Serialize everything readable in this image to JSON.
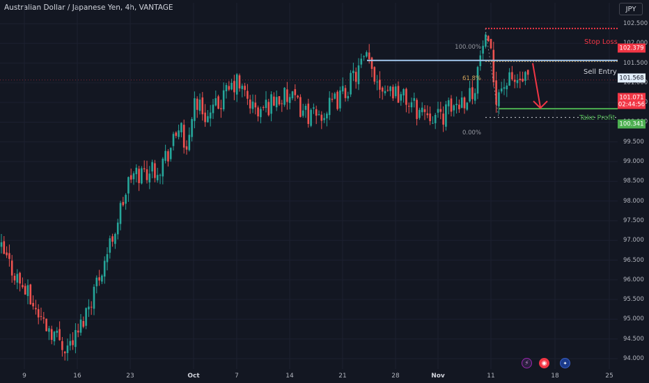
{
  "header": {
    "title": "Australian Dollar / Japanese Yen, 4h, VANTAGE",
    "currency_button": "JPY"
  },
  "colors": {
    "background": "#131722",
    "bull": "#26a69a",
    "bear": "#ef5350",
    "stop_loss": "#f23645",
    "sell_entry": "#a3c8ee",
    "take_profit": "#4caf50",
    "arrow": "#f23645",
    "fib_label": "#d1a55a"
  },
  "axis": {
    "y_ticks": [
      "102.500",
      "102.000",
      "101.500",
      "101.000",
      "100.500",
      "100.000",
      "99.500",
      "99.000",
      "98.500",
      "98.000",
      "97.500",
      "97.000",
      "96.500",
      "96.000",
      "95.500",
      "95.000",
      "94.500",
      "94.000"
    ],
    "x_ticks": [
      "9",
      "16",
      "23",
      "Oct",
      "7",
      "14",
      "21",
      "28",
      "Nov",
      "11",
      "18",
      "25"
    ]
  },
  "chart_data": {
    "type": "candlestick",
    "symbol": "Australian Dollar / Japanese Yen",
    "timeframe": "4h",
    "source": "VANTAGE",
    "ylim": [
      93.9,
      103.4
    ],
    "current_price": 101.071,
    "countdown": "02:44:56",
    "close_path": [
      {
        "x": "9",
        "y": 96.8
      },
      {
        "x": "12",
        "y": 95.0
      },
      {
        "x": "14",
        "y": 94.3
      },
      {
        "x": "16",
        "y": 94.6
      },
      {
        "x": "18",
        "y": 96.0
      },
      {
        "x": "20",
        "y": 97.0
      },
      {
        "x": "23",
        "y": 98.6
      },
      {
        "x": "25",
        "y": 98.9
      },
      {
        "x": "26",
        "y": 99.5
      },
      {
        "x": "27",
        "y": 100.2
      },
      {
        "x": "29",
        "y": 98.7
      },
      {
        "x": "Oct",
        "y": 100.6
      },
      {
        "x": "2",
        "y": 100.1
      },
      {
        "x": "4",
        "y": 100.6
      },
      {
        "x": "7",
        "y": 101.0
      },
      {
        "x": "9",
        "y": 100.2
      },
      {
        "x": "11",
        "y": 100.6
      },
      {
        "x": "14",
        "y": 100.6
      },
      {
        "x": "16",
        "y": 100.1
      },
      {
        "x": "18",
        "y": 100.3
      },
      {
        "x": "21",
        "y": 100.7
      },
      {
        "x": "23",
        "y": 101.6
      },
      {
        "x": "25",
        "y": 101.0
      },
      {
        "x": "28",
        "y": 100.8
      },
      {
        "x": "30",
        "y": 100.3
      },
      {
        "x": "31",
        "y": 100.3
      },
      {
        "x": "Nov",
        "y": 100.1
      },
      {
        "x": "4",
        "y": 100.8
      },
      {
        "x": "6",
        "y": 102.1
      },
      {
        "x": "7",
        "y": 101.6
      },
      {
        "x": "8",
        "y": 100.7
      },
      {
        "x": "11",
        "y": 101.0
      },
      {
        "x": "12",
        "y": 101.07
      }
    ],
    "levels": [
      {
        "name": "Stop Loss",
        "value": 102.379
      },
      {
        "name": "Sell Entry",
        "value": 101.568
      },
      {
        "name": "Take Profit",
        "value": 100.341
      }
    ],
    "fib": [
      {
        "label": "100.00%",
        "value": 102.379
      },
      {
        "label": "61.8%",
        "value": 101.568
      },
      {
        "label": "0.00%",
        "value": 100.12
      }
    ]
  },
  "annotations": {
    "stop_loss": "Stop Loss",
    "sell_entry": "Sell Entry",
    "take_profit": "Take Profit",
    "fib_100": "100.00%",
    "fib_618": "61.8%",
    "fib_0": "0.00%"
  },
  "price_tags": {
    "stop_loss": "102.379",
    "sell_entry": "101.568",
    "current": "101.071",
    "countdown": "02:44:56",
    "take_profit": "100.341"
  },
  "events": [
    {
      "name": "lightning-event-icon",
      "glyph": "⚡"
    },
    {
      "name": "target-event-icon",
      "glyph": "◉"
    },
    {
      "name": "australia-flag-event-icon",
      "glyph": "✦"
    }
  ]
}
